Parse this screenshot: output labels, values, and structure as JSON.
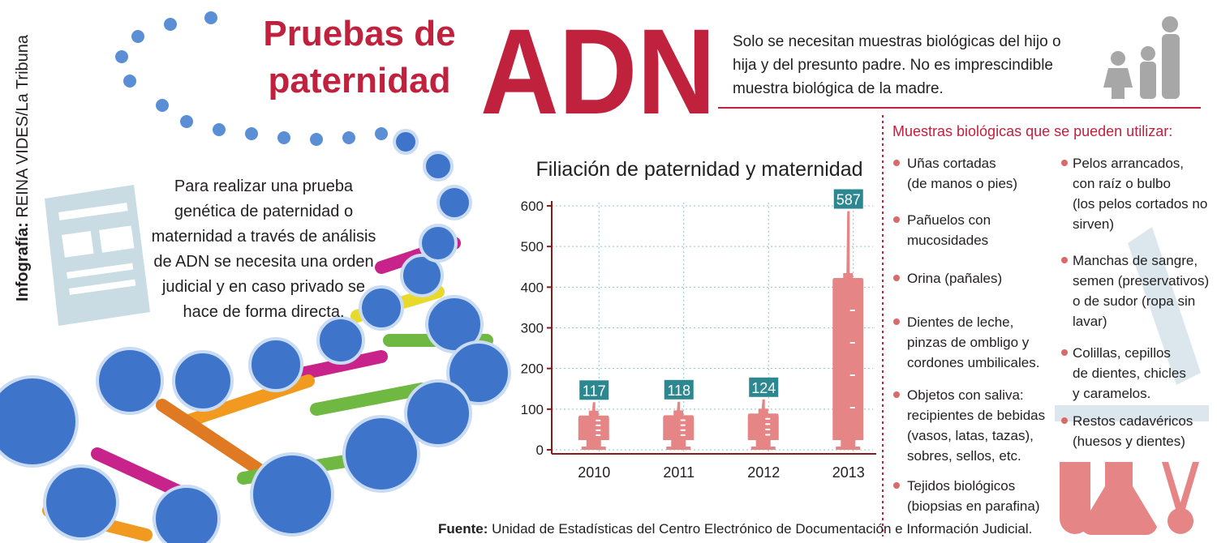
{
  "credit": {
    "label": "Infografía:",
    "name": "REINA VIDES/La Tribuna"
  },
  "header": {
    "title_lines": [
      "Pruebas de",
      "paternidad"
    ],
    "acronym": "ADN",
    "intro_lines": [
      "Solo se necesitan muestras biológicas del hijo o",
      "hija y del presunto padre. No es imprescindible",
      "muestra biológica de la madre."
    ]
  },
  "description_lines": [
    "Para realizar una prueba",
    "genética de paternidad o",
    "maternidad a través de análisis",
    "de ADN se necesita una orden",
    "judicial y en caso privado se",
    "hace de forma directa."
  ],
  "samples": {
    "heading": "Muestras biológicas que se pueden utilizar:",
    "left": [
      [
        "Uñas cortadas",
        "(de manos o pies)"
      ],
      [
        "Pañuelos con",
        "mucosidades"
      ],
      [
        "Orina (pañales)"
      ],
      [
        "Dientes de leche,",
        "pinzas de ombligo y",
        "cordones umbilicales."
      ],
      [
        "Objetos con saliva:",
        "recipientes de bebidas",
        "(vasos, latas, tazas),",
        "sobres, sellos, etc."
      ],
      [
        "Tejidos biológicos",
        "(biopsias en parafina)"
      ]
    ],
    "right": [
      [
        "Pelos arrancados,",
        "con raíz o bulbo",
        "(los pelos cortados no",
        "sirven)"
      ],
      [
        "Manchas de sangre,",
        "semen (preservativos)",
        "o de sudor (ropa sin",
        "lavar)"
      ],
      [
        "Colillas, cepillos",
        "de dientes, chicles",
        "y caramelos."
      ],
      [
        "Restos cadavéricos",
        "(huesos y dientes)"
      ]
    ]
  },
  "source": {
    "label": "Fuente:",
    "text": "Unidad de Estadísticas del Centro Electrónico de Documentación e Información Judicial."
  },
  "chart_data": {
    "type": "syringe",
    "title": "Filiación de paternidad y maternidad",
    "categories": [
      "2010",
      "2011",
      "2012",
      "2013"
    ],
    "values": [
      117,
      118,
      124,
      587
    ],
    "color": "#e58585",
    "label_color": "#2d8791",
    "ylim": [
      0,
      600
    ],
    "yticks": [
      0,
      100,
      200,
      300,
      400,
      500,
      600
    ],
    "grid": true
  }
}
